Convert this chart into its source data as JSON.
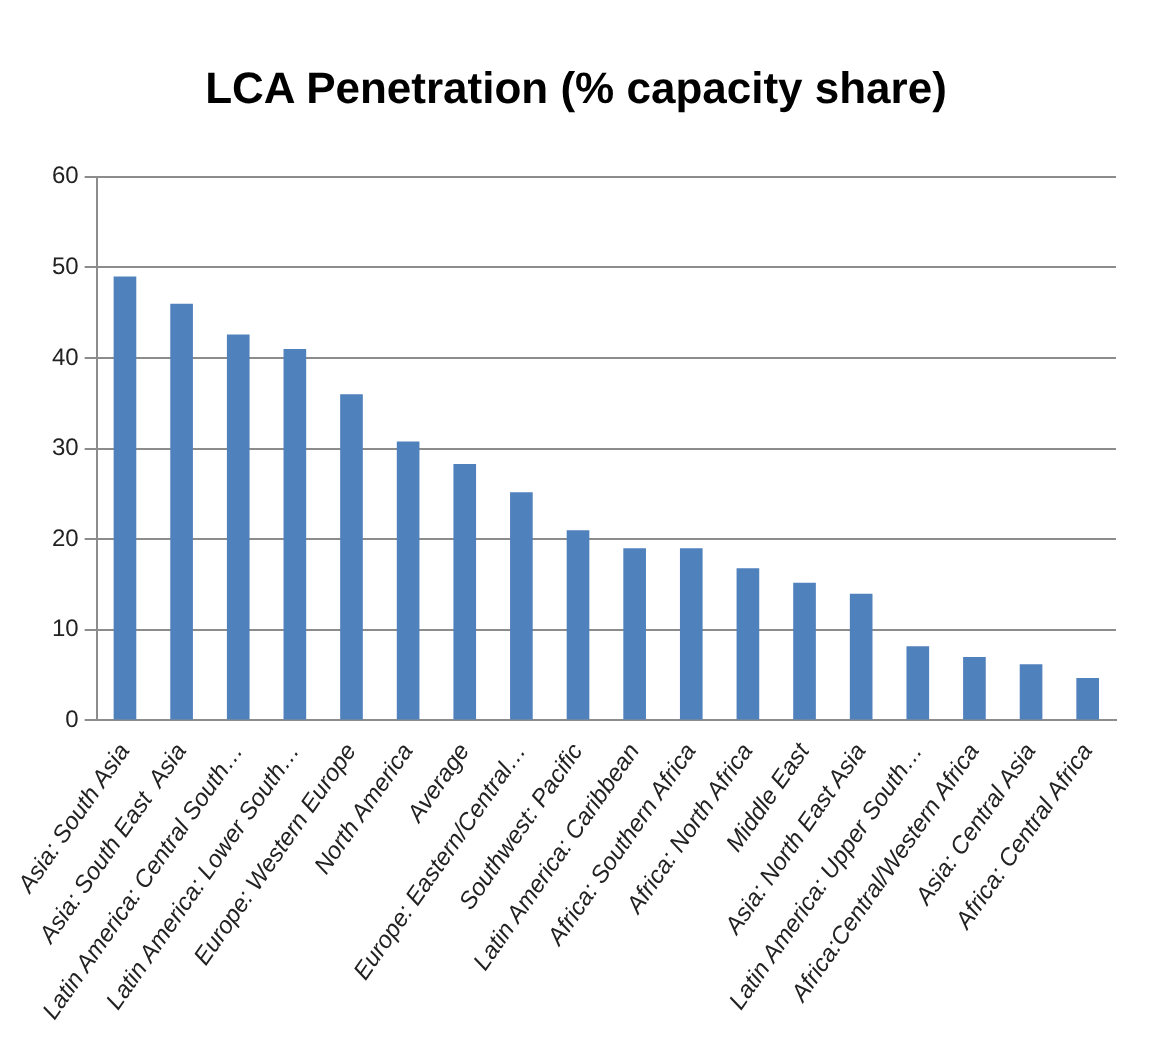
{
  "chart_data": {
    "type": "bar",
    "title": "LCA Penetration (% capacity share)",
    "categories": [
      "Asia: South Asia",
      "Asia: South East  Asia",
      "Latin America: Central South…",
      "Latin America: Lower South…",
      "Europe: Western Europe",
      "North America",
      "Average",
      "Europe: Eastern/Central…",
      "Southwest: Pacific",
      "Latin America: Caribbean",
      "Africa: Southern Africa",
      "Africa: North Africa",
      "Middle East",
      "Asia: North East Asia",
      "Latin America: Upper South…",
      "Africa:Central/Western Africa",
      "Asia: Central Asia",
      "Africa: Central Africa"
    ],
    "values": [
      49,
      46,
      42.6,
      41,
      36,
      30.8,
      28.3,
      25.2,
      21,
      19,
      19,
      16.8,
      15.2,
      14,
      8.2,
      7,
      6.2,
      4.7
    ],
    "color": "#4f81bd",
    "ylim": [
      0,
      60
    ],
    "yticks": [
      0,
      10,
      20,
      30,
      40,
      50,
      60
    ],
    "grid": "y",
    "legend": false
  }
}
